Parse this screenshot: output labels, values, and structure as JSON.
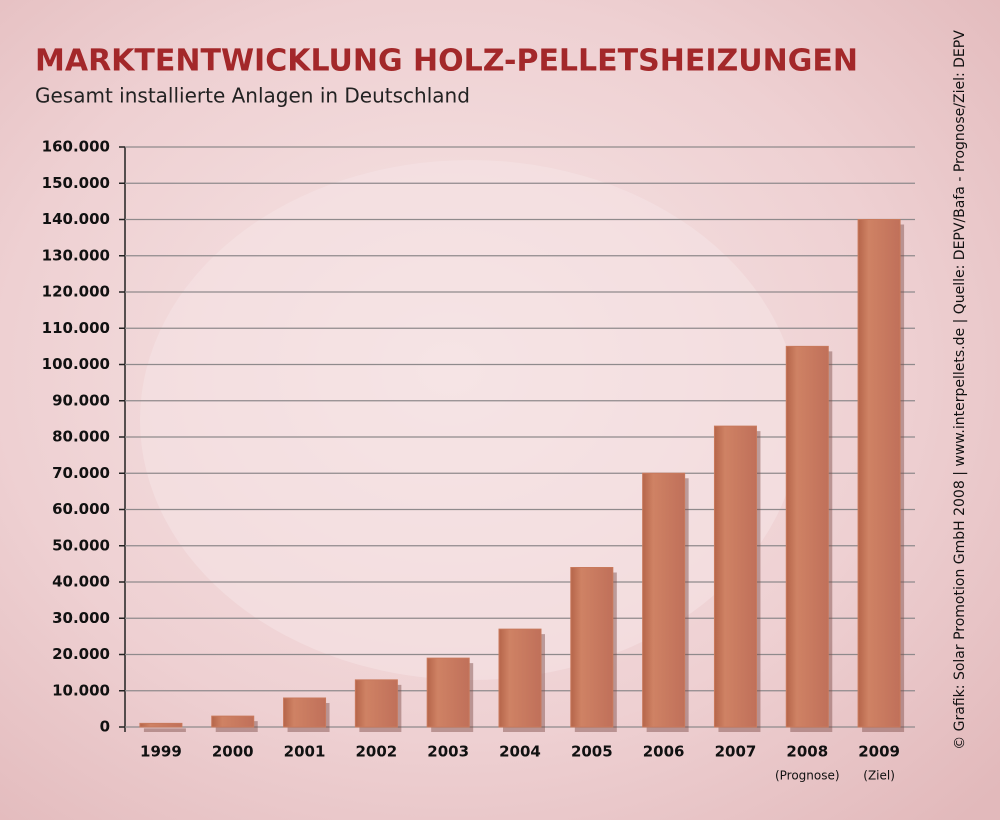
{
  "chart_data": {
    "type": "bar",
    "title": "MARKTENTWICKLUNG HOLZ-PELLETSHEIZUNGEN",
    "subtitle": "Gesamt installierte Anlagen in Deutschland",
    "source": "© Grafik: Solar Promotion GmbH 2008 | www.interpellets.de | Quelle: DEPV/Bafa - Prognose/Ziel: DEPV",
    "categories": [
      "1999",
      "2000",
      "2001",
      "2002",
      "2003",
      "2004",
      "2005",
      "2006",
      "2007",
      "2008",
      "2009"
    ],
    "category_notes": [
      null,
      null,
      null,
      null,
      null,
      null,
      null,
      null,
      null,
      "(Prognose)",
      "(Ziel)"
    ],
    "values": [
      1000,
      3000,
      8000,
      13000,
      19000,
      27000,
      44000,
      70000,
      83000,
      105000,
      140000
    ],
    "color": "#c8795c",
    "ylim": [
      0,
      160000
    ],
    "yticks": [
      0,
      {
        "value": 10000,
        "label": "10.000"
      },
      {
        "value": 20000,
        "label": "20.000"
      },
      {
        "value": 30000,
        "label": "30.000"
      },
      {
        "value": 40000,
        "label": "40.000"
      },
      {
        "value": 50000,
        "label": "50.000"
      },
      {
        "value": 60000,
        "label": "60.000"
      },
      {
        "value": 70000,
        "label": "70.000"
      },
      {
        "value": 80000,
        "label": "80.000"
      },
      {
        "value": 90000,
        "label": "90.000"
      },
      {
        "value": 100000,
        "label": "100.000"
      },
      {
        "value": 110000,
        "label": "110.000"
      },
      {
        "value": 120000,
        "label": "120.000"
      },
      {
        "value": 130000,
        "label": "130.000"
      },
      {
        "value": 140000,
        "label": "140.000"
      },
      {
        "value": 150000,
        "label": "150.000"
      },
      {
        "value": 160000,
        "label": "160.000"
      }
    ],
    "grid": true
  }
}
